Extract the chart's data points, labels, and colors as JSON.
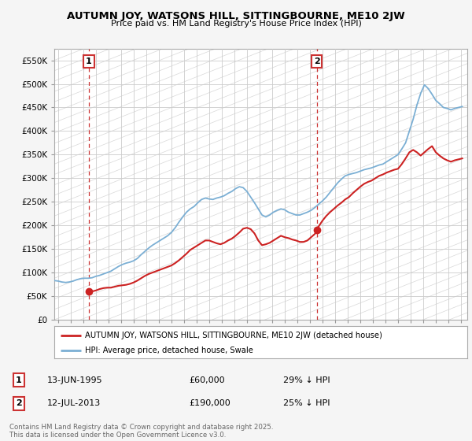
{
  "title": "AUTUMN JOY, WATSONS HILL, SITTINGBOURNE, ME10 2JW",
  "subtitle": "Price paid vs. HM Land Registry's House Price Index (HPI)",
  "legend_line1": "AUTUMN JOY, WATSONS HILL, SITTINGBOURNE, ME10 2JW (detached house)",
  "legend_line2": "HPI: Average price, detached house, Swale",
  "annotation1_date": "13-JUN-1995",
  "annotation1_price": "£60,000",
  "annotation1_hpi": "29% ↓ HPI",
  "annotation2_date": "12-JUL-2013",
  "annotation2_price": "£190,000",
  "annotation2_hpi": "25% ↓ HPI",
  "footnote": "Contains HM Land Registry data © Crown copyright and database right 2025.\nThis data is licensed under the Open Government Licence v3.0.",
  "ylim": [
    0,
    575000
  ],
  "yticks": [
    0,
    50000,
    100000,
    150000,
    200000,
    250000,
    300000,
    350000,
    400000,
    450000,
    500000,
    550000
  ],
  "ytick_labels": [
    "£0",
    "£50K",
    "£100K",
    "£150K",
    "£200K",
    "£250K",
    "£300K",
    "£350K",
    "£400K",
    "£450K",
    "£500K",
    "£550K"
  ],
  "xlim_start": 1992.7,
  "xlim_end": 2025.5,
  "background_color": "#f5f5f5",
  "plot_bg_color": "#ffffff",
  "grid_color": "#cccccc",
  "hpi_color": "#7bafd4",
  "price_color": "#cc2222",
  "vline_color": "#cc3333",
  "marker1_x": 1995.45,
  "marker1_y": 60000,
  "marker2_x": 2013.54,
  "marker2_y": 190000,
  "hpi_data_x": [
    1992.7,
    1993.0,
    1993.3,
    1993.6,
    1993.9,
    1994.2,
    1994.5,
    1994.8,
    1995.1,
    1995.4,
    1995.7,
    1996.0,
    1996.3,
    1996.6,
    1996.9,
    1997.2,
    1997.5,
    1997.8,
    1998.1,
    1998.4,
    1998.7,
    1999.0,
    1999.3,
    1999.6,
    1999.9,
    2000.2,
    2000.5,
    2000.8,
    2001.1,
    2001.4,
    2001.7,
    2002.0,
    2002.3,
    2002.6,
    2002.9,
    2003.2,
    2003.5,
    2003.8,
    2004.1,
    2004.4,
    2004.7,
    2005.0,
    2005.3,
    2005.6,
    2005.9,
    2006.2,
    2006.5,
    2006.8,
    2007.1,
    2007.4,
    2007.7,
    2008.0,
    2008.3,
    2008.6,
    2008.9,
    2009.2,
    2009.5,
    2009.8,
    2010.1,
    2010.4,
    2010.7,
    2011.0,
    2011.3,
    2011.6,
    2011.9,
    2012.2,
    2012.5,
    2012.8,
    2013.1,
    2013.4,
    2013.7,
    2014.0,
    2014.3,
    2014.6,
    2014.9,
    2015.2,
    2015.5,
    2015.8,
    2016.1,
    2016.4,
    2016.7,
    2017.0,
    2017.3,
    2017.6,
    2017.9,
    2018.2,
    2018.5,
    2018.8,
    2019.1,
    2019.4,
    2019.7,
    2020.0,
    2020.3,
    2020.6,
    2020.9,
    2021.2,
    2021.5,
    2021.8,
    2022.1,
    2022.4,
    2022.7,
    2023.0,
    2023.3,
    2023.6,
    2023.9,
    2024.2,
    2024.5,
    2024.8,
    2025.1
  ],
  "hpi_data_y": [
    83000,
    82000,
    80000,
    79000,
    80000,
    82000,
    85000,
    87000,
    88000,
    88000,
    89000,
    92000,
    94000,
    97000,
    100000,
    103000,
    108000,
    113000,
    117000,
    120000,
    122000,
    125000,
    130000,
    138000,
    145000,
    152000,
    158000,
    163000,
    168000,
    173000,
    178000,
    185000,
    195000,
    207000,
    218000,
    228000,
    235000,
    240000,
    248000,
    255000,
    258000,
    256000,
    255000,
    258000,
    260000,
    263000,
    268000,
    272000,
    278000,
    282000,
    280000,
    272000,
    260000,
    248000,
    235000,
    222000,
    218000,
    222000,
    228000,
    232000,
    235000,
    233000,
    228000,
    225000,
    222000,
    222000,
    225000,
    228000,
    232000,
    238000,
    245000,
    252000,
    260000,
    270000,
    280000,
    290000,
    298000,
    305000,
    308000,
    310000,
    312000,
    315000,
    318000,
    320000,
    322000,
    325000,
    328000,
    330000,
    335000,
    340000,
    345000,
    350000,
    362000,
    375000,
    400000,
    425000,
    455000,
    480000,
    498000,
    490000,
    478000,
    465000,
    458000,
    450000,
    448000,
    445000,
    448000,
    450000,
    452000
  ],
  "price_data_x": [
    1995.45,
    1995.7,
    1996.0,
    1996.3,
    1996.6,
    1996.9,
    1997.2,
    1997.5,
    1997.8,
    1998.1,
    1998.4,
    1998.7,
    1999.0,
    1999.3,
    1999.6,
    1999.9,
    2000.2,
    2000.5,
    2000.8,
    2001.1,
    2001.4,
    2001.7,
    2002.0,
    2002.3,
    2002.6,
    2002.9,
    2003.2,
    2003.5,
    2003.8,
    2004.1,
    2004.4,
    2004.7,
    2005.0,
    2005.3,
    2005.6,
    2005.9,
    2006.2,
    2006.5,
    2006.8,
    2007.1,
    2007.4,
    2007.7,
    2008.0,
    2008.3,
    2008.6,
    2008.9,
    2009.2,
    2009.5,
    2009.8,
    2010.1,
    2010.4,
    2010.7,
    2011.0,
    2011.3,
    2011.6,
    2011.9,
    2012.2,
    2012.5,
    2012.8,
    2013.1,
    2013.4,
    2013.54,
    2013.7,
    2014.0,
    2014.3,
    2014.6,
    2014.9,
    2015.2,
    2015.5,
    2015.8,
    2016.1,
    2016.4,
    2016.7,
    2017.0,
    2017.3,
    2017.6,
    2017.9,
    2018.2,
    2018.5,
    2018.8,
    2019.1,
    2019.4,
    2019.7,
    2020.0,
    2020.3,
    2020.6,
    2020.9,
    2021.2,
    2021.5,
    2021.8,
    2022.1,
    2022.4,
    2022.7,
    2023.0,
    2023.3,
    2023.6,
    2023.9,
    2024.2,
    2024.5,
    2024.8,
    2025.1
  ],
  "price_data_y": [
    60000,
    60000,
    62000,
    65000,
    67000,
    68000,
    68000,
    70000,
    72000,
    73000,
    74000,
    76000,
    79000,
    83000,
    88000,
    93000,
    97000,
    100000,
    103000,
    106000,
    109000,
    112000,
    115000,
    120000,
    126000,
    133000,
    140000,
    148000,
    153000,
    158000,
    163000,
    168000,
    168000,
    165000,
    162000,
    160000,
    163000,
    168000,
    172000,
    178000,
    185000,
    193000,
    195000,
    192000,
    183000,
    168000,
    158000,
    160000,
    163000,
    168000,
    173000,
    178000,
    175000,
    173000,
    170000,
    168000,
    165000,
    165000,
    168000,
    175000,
    182000,
    190000,
    198000,
    210000,
    220000,
    228000,
    235000,
    242000,
    248000,
    255000,
    260000,
    268000,
    275000,
    282000,
    288000,
    292000,
    295000,
    300000,
    305000,
    308000,
    312000,
    315000,
    318000,
    320000,
    330000,
    342000,
    355000,
    360000,
    355000,
    348000,
    355000,
    362000,
    368000,
    355000,
    348000,
    342000,
    338000,
    335000,
    338000,
    340000,
    342000
  ]
}
